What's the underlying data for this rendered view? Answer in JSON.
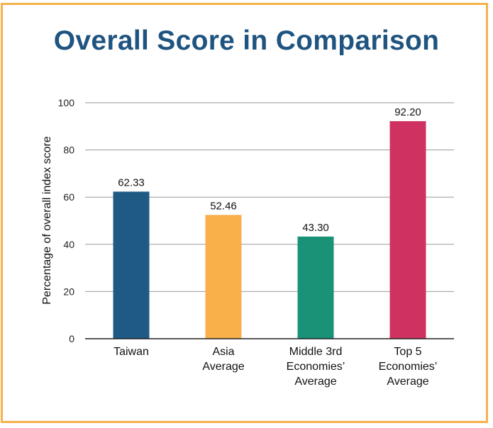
{
  "chart_data": {
    "type": "bar",
    "title": "Overall Score in Comparison",
    "ylabel": "Percentage of overall index score",
    "xlabel": "",
    "ylim": [
      0,
      100
    ],
    "yticks": [
      0,
      20,
      40,
      60,
      80,
      100
    ],
    "grid": true,
    "legend": "none",
    "categories": [
      [
        "Taiwan"
      ],
      [
        "Asia",
        "Average"
      ],
      [
        "Middle 3rd",
        "Economies’",
        "Average"
      ],
      [
        "Top 5",
        "Economies’",
        "Average"
      ]
    ],
    "values": [
      62.33,
      52.46,
      43.3,
      92.2
    ],
    "value_labels": [
      "62.33",
      "52.46",
      "43.30",
      "92.20"
    ],
    "colors": [
      "#1f5a85",
      "#f9b04b",
      "#1a9278",
      "#cf3260"
    ],
    "frame_color": "#f5b24a",
    "title_color": "#1f5480"
  }
}
